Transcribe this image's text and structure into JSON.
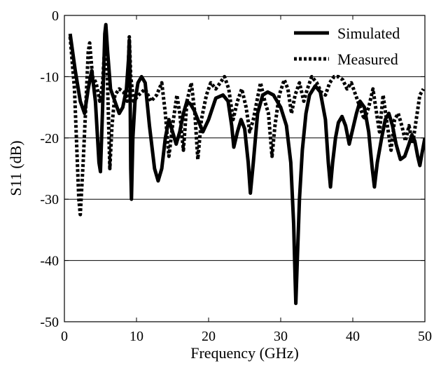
{
  "chart_data": {
    "type": "line",
    "title": "",
    "xlabel": "Frequency (GHz)",
    "ylabel": "S11 (dB)",
    "xlim": [
      0,
      50
    ],
    "ylim": [
      -50,
      0
    ],
    "xticks": [
      "0",
      "10",
      "20",
      "30",
      "40",
      "50"
    ],
    "yticks": [
      "0",
      "-10",
      "-20",
      "-30",
      "-40",
      "-50"
    ],
    "grid": "horizontal",
    "legend_position": "top-right",
    "series": [
      {
        "name": "Simulated",
        "style": "solid",
        "color": "#000000",
        "points": [
          [
            0.8,
            -3
          ],
          [
            1.5,
            -9
          ],
          [
            2.2,
            -14
          ],
          [
            2.8,
            -16
          ],
          [
            3.3,
            -12
          ],
          [
            3.8,
            -9
          ],
          [
            4.3,
            -14
          ],
          [
            4.8,
            -24
          ],
          [
            5.0,
            -25.5
          ],
          [
            5.3,
            -15
          ],
          [
            5.6,
            -3
          ],
          [
            5.75,
            -1.5
          ],
          [
            6.0,
            -6
          ],
          [
            6.4,
            -12
          ],
          [
            7.0,
            -14
          ],
          [
            7.6,
            -16
          ],
          [
            8.1,
            -15
          ],
          [
            8.6,
            -12
          ],
          [
            8.9,
            -7
          ],
          [
            9.0,
            -4
          ],
          [
            9.1,
            -10
          ],
          [
            9.2,
            -25
          ],
          [
            9.3,
            -30
          ],
          [
            9.5,
            -20
          ],
          [
            9.8,
            -14
          ],
          [
            10.2,
            -11
          ],
          [
            10.7,
            -10
          ],
          [
            11.2,
            -11
          ],
          [
            11.8,
            -18
          ],
          [
            12.5,
            -25
          ],
          [
            13.0,
            -27
          ],
          [
            13.5,
            -25
          ],
          [
            14.0,
            -20
          ],
          [
            14.5,
            -17
          ],
          [
            15.0,
            -19
          ],
          [
            15.5,
            -21
          ],
          [
            16.0,
            -19
          ],
          [
            16.5,
            -16
          ],
          [
            17.0,
            -14
          ],
          [
            17.5,
            -14.5
          ],
          [
            18.0,
            -15.5
          ],
          [
            18.5,
            -17
          ],
          [
            19.2,
            -19
          ],
          [
            20.0,
            -17
          ],
          [
            21.0,
            -13.5
          ],
          [
            22.0,
            -13
          ],
          [
            22.7,
            -14
          ],
          [
            23.2,
            -18
          ],
          [
            23.5,
            -21.5
          ],
          [
            24.0,
            -19
          ],
          [
            24.5,
            -17
          ],
          [
            25.0,
            -18.5
          ],
          [
            25.5,
            -24
          ],
          [
            25.8,
            -29
          ],
          [
            26.2,
            -24
          ],
          [
            26.8,
            -16
          ],
          [
            27.5,
            -13
          ],
          [
            28.2,
            -12.5
          ],
          [
            29.0,
            -13
          ],
          [
            30.0,
            -15
          ],
          [
            30.8,
            -18
          ],
          [
            31.4,
            -24
          ],
          [
            31.8,
            -34
          ],
          [
            32.0,
            -43
          ],
          [
            32.1,
            -47
          ],
          [
            32.3,
            -40
          ],
          [
            32.6,
            -30
          ],
          [
            33.0,
            -22
          ],
          [
            33.5,
            -16
          ],
          [
            34.0,
            -13
          ],
          [
            34.8,
            -11.5
          ],
          [
            35.5,
            -12.5
          ],
          [
            36.2,
            -17
          ],
          [
            36.6,
            -24
          ],
          [
            36.9,
            -28
          ],
          [
            37.2,
            -24
          ],
          [
            37.6,
            -20
          ],
          [
            38.0,
            -17.5
          ],
          [
            38.5,
            -16.5
          ],
          [
            39.0,
            -18
          ],
          [
            39.5,
            -21
          ],
          [
            39.9,
            -19
          ],
          [
            40.5,
            -16
          ],
          [
            41.0,
            -14
          ],
          [
            41.6,
            -15
          ],
          [
            42.2,
            -19
          ],
          [
            42.7,
            -25
          ],
          [
            43.0,
            -28
          ],
          [
            43.4,
            -24
          ],
          [
            44.0,
            -20
          ],
          [
            44.5,
            -17
          ],
          [
            45.0,
            -16
          ],
          [
            45.5,
            -18
          ],
          [
            46.0,
            -21
          ],
          [
            46.6,
            -23.5
          ],
          [
            47.2,
            -23
          ],
          [
            47.8,
            -21
          ],
          [
            48.2,
            -19.5
          ],
          [
            48.6,
            -20.5
          ],
          [
            49.0,
            -23
          ],
          [
            49.3,
            -24.5
          ],
          [
            49.6,
            -22.5
          ],
          [
            50.0,
            -20
          ]
        ]
      },
      {
        "name": "Measured",
        "style": "dotted",
        "color": "#000000",
        "points": [
          [
            0.8,
            -3.5
          ],
          [
            1.4,
            -12
          ],
          [
            1.8,
            -24
          ],
          [
            2.0,
            -30
          ],
          [
            2.2,
            -32.5
          ],
          [
            2.6,
            -24
          ],
          [
            3.0,
            -14
          ],
          [
            3.3,
            -6
          ],
          [
            3.5,
            -4.5
          ],
          [
            3.9,
            -10
          ],
          [
            4.4,
            -11
          ],
          [
            4.9,
            -14
          ],
          [
            5.3,
            -11
          ],
          [
            5.6,
            -5
          ],
          [
            5.8,
            -3.5
          ],
          [
            6.1,
            -16
          ],
          [
            6.3,
            -25
          ],
          [
            6.6,
            -18
          ],
          [
            7.0,
            -13
          ],
          [
            7.6,
            -12
          ],
          [
            8.2,
            -12.5
          ],
          [
            8.7,
            -14
          ],
          [
            9.0,
            -3.5
          ],
          [
            9.2,
            -10
          ],
          [
            9.6,
            -14
          ],
          [
            10.3,
            -13
          ],
          [
            11.2,
            -12
          ],
          [
            12.0,
            -14
          ],
          [
            12.8,
            -13
          ],
          [
            13.5,
            -11
          ],
          [
            14.0,
            -16
          ],
          [
            14.5,
            -23
          ],
          [
            15.0,
            -18
          ],
          [
            15.6,
            -13
          ],
          [
            16.0,
            -16
          ],
          [
            16.5,
            -22
          ],
          [
            17.0,
            -14
          ],
          [
            17.6,
            -11
          ],
          [
            18.1,
            -16
          ],
          [
            18.5,
            -23.5
          ],
          [
            19.0,
            -17
          ],
          [
            19.7,
            -13
          ],
          [
            20.3,
            -11
          ],
          [
            21.0,
            -12
          ],
          [
            21.6,
            -11
          ],
          [
            22.2,
            -10
          ],
          [
            22.8,
            -12
          ],
          [
            23.4,
            -17
          ],
          [
            24.0,
            -14
          ],
          [
            24.6,
            -12
          ],
          [
            25.2,
            -15
          ],
          [
            25.7,
            -19
          ],
          [
            26.2,
            -17
          ],
          [
            26.7,
            -14
          ],
          [
            27.2,
            -11
          ],
          [
            27.8,
            -14
          ],
          [
            28.3,
            -16
          ],
          [
            28.8,
            -23
          ],
          [
            29.2,
            -18
          ],
          [
            29.8,
            -13
          ],
          [
            30.5,
            -10.5
          ],
          [
            31.0,
            -12
          ],
          [
            31.5,
            -16
          ],
          [
            32.0,
            -13
          ],
          [
            32.6,
            -11
          ],
          [
            33.2,
            -14
          ],
          [
            33.7,
            -12
          ],
          [
            34.3,
            -10
          ],
          [
            35.0,
            -11
          ],
          [
            35.6,
            -12.5
          ],
          [
            36.2,
            -13
          ],
          [
            36.8,
            -11
          ],
          [
            37.4,
            -10
          ],
          [
            38.0,
            -10
          ],
          [
            38.6,
            -10.5
          ],
          [
            39.2,
            -12
          ],
          [
            39.8,
            -11
          ],
          [
            40.4,
            -13
          ],
          [
            41.0,
            -15
          ],
          [
            41.6,
            -17
          ],
          [
            42.2,
            -15
          ],
          [
            42.8,
            -12
          ],
          [
            43.3,
            -16
          ],
          [
            43.7,
            -19
          ],
          [
            44.2,
            -13
          ],
          [
            44.8,
            -18
          ],
          [
            45.3,
            -22
          ],
          [
            45.8,
            -17
          ],
          [
            46.3,
            -16
          ],
          [
            46.8,
            -18
          ],
          [
            47.3,
            -20.5
          ],
          [
            47.8,
            -18
          ],
          [
            48.3,
            -21
          ],
          [
            48.8,
            -17
          ],
          [
            49.3,
            -13
          ],
          [
            49.8,
            -12
          ]
        ]
      }
    ]
  }
}
